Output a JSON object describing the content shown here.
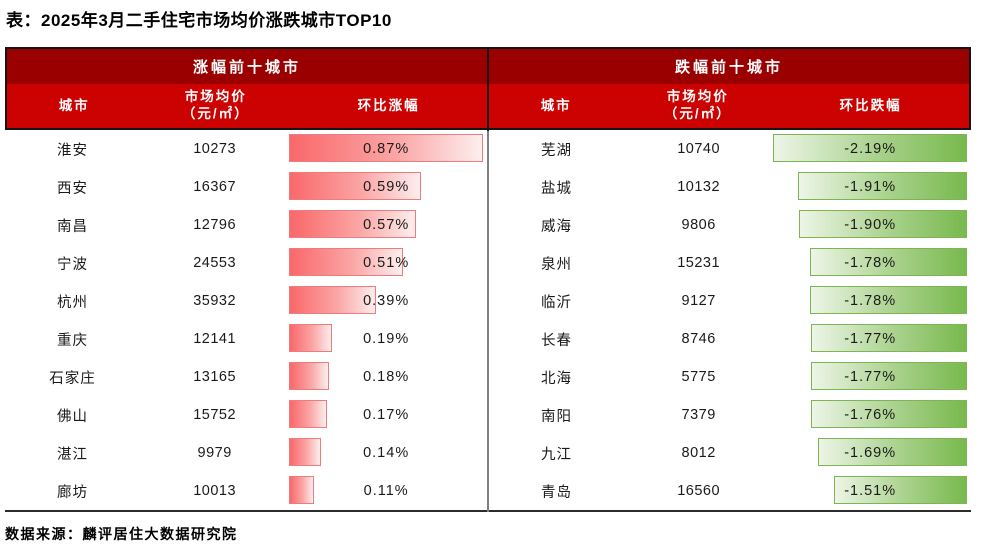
{
  "page": {
    "title": "表：2025年3月二手住宅市场均价涨跌城市TOP10",
    "source_note": "数据来源：麟评居住大数据研究院"
  },
  "colors": {
    "band_dark_red": "#9b0000",
    "band_red": "#cc0202",
    "header_text": "#ffffff",
    "bar_red_start": "#f9686a",
    "bar_red_end": "#fdeeee",
    "bar_red_border": "#ef7b7c",
    "bar_green_start": "#edf5e7",
    "bar_green_end": "#78b94d",
    "bar_green_border": "#7db553",
    "divider_gray": "#808080",
    "line_black": "#151515"
  },
  "chart_data": {
    "type": "table",
    "title": "表：2025年3月二手住宅市场均价涨跌城市TOP10",
    "panels": {
      "gainers": {
        "header": "涨幅前十城市",
        "columns": [
          "城市",
          "市场均价\n（元/㎡）",
          "环比涨幅"
        ],
        "bar_style": "red",
        "bar_anchor": "left",
        "bar_scale_max": 0.87,
        "rows": [
          {
            "city": "淮安",
            "price": "10273",
            "change_pct": 0.87,
            "change_label": "0.87%"
          },
          {
            "city": "西安",
            "price": "16367",
            "change_pct": 0.59,
            "change_label": "0.59%"
          },
          {
            "city": "南昌",
            "price": "12796",
            "change_pct": 0.57,
            "change_label": "0.57%"
          },
          {
            "city": "宁波",
            "price": "24553",
            "change_pct": 0.51,
            "change_label": "0.51%"
          },
          {
            "city": "杭州",
            "price": "35932",
            "change_pct": 0.39,
            "change_label": "0.39%"
          },
          {
            "city": "重庆",
            "price": "12141",
            "change_pct": 0.19,
            "change_label": "0.19%"
          },
          {
            "city": "石家庄",
            "price": "13165",
            "change_pct": 0.18,
            "change_label": "0.18%"
          },
          {
            "city": "佛山",
            "price": "15752",
            "change_pct": 0.17,
            "change_label": "0.17%"
          },
          {
            "city": "湛江",
            "price": "9979",
            "change_pct": 0.14,
            "change_label": "0.14%"
          },
          {
            "city": "廊坊",
            "price": "10013",
            "change_pct": 0.11,
            "change_label": "0.11%"
          }
        ]
      },
      "decliners": {
        "header": "跌幅前十城市",
        "columns": [
          "城市",
          "市场均价\n（元/㎡）",
          "环比跌幅"
        ],
        "bar_style": "green",
        "bar_anchor": "right",
        "bar_scale_max": 2.19,
        "rows": [
          {
            "city": "芜湖",
            "price": "10740",
            "change_pct": -2.19,
            "change_label": "-2.19%"
          },
          {
            "city": "盐城",
            "price": "10132",
            "change_pct": -1.91,
            "change_label": "-1.91%"
          },
          {
            "city": "威海",
            "price": "9806",
            "change_pct": -1.9,
            "change_label": "-1.90%"
          },
          {
            "city": "泉州",
            "price": "15231",
            "change_pct": -1.78,
            "change_label": "-1.78%"
          },
          {
            "city": "临沂",
            "price": "9127",
            "change_pct": -1.78,
            "change_label": "-1.78%"
          },
          {
            "city": "长春",
            "price": "8746",
            "change_pct": -1.77,
            "change_label": "-1.77%"
          },
          {
            "city": "北海",
            "price": "5775",
            "change_pct": -1.77,
            "change_label": "-1.77%"
          },
          {
            "city": "南阳",
            "price": "7379",
            "change_pct": -1.76,
            "change_label": "-1.76%"
          },
          {
            "city": "九江",
            "price": "8012",
            "change_pct": -1.69,
            "change_label": "-1.69%"
          },
          {
            "city": "青岛",
            "price": "16560",
            "change_pct": -1.51,
            "change_label": "-1.51%"
          }
        ]
      }
    }
  }
}
